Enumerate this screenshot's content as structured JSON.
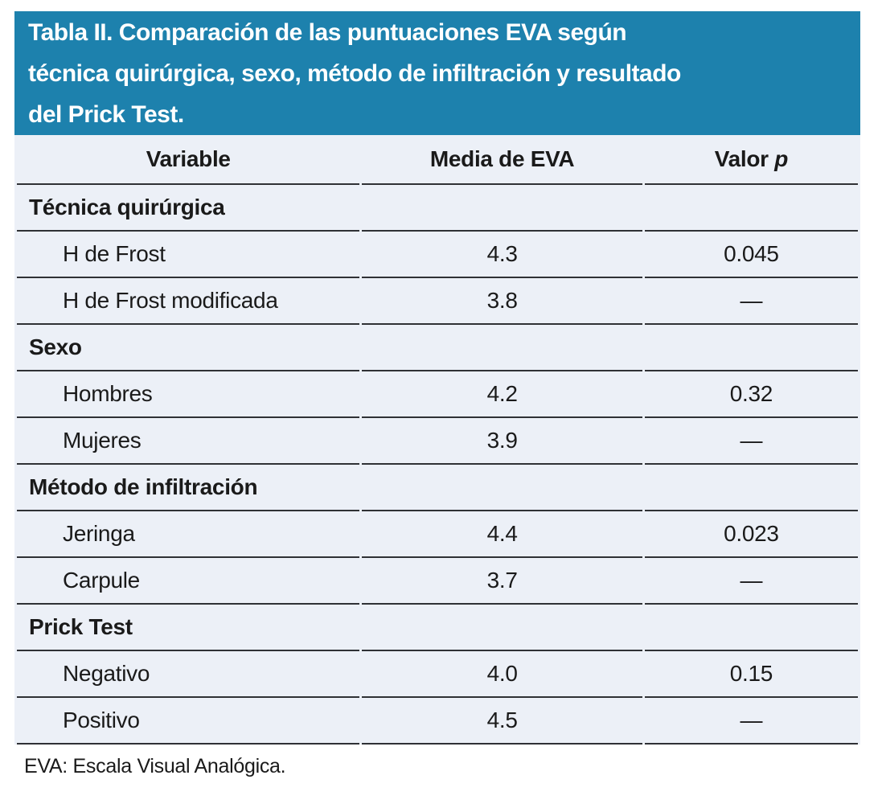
{
  "title": {
    "lines": [
      "Tabla II. Comparación de las puntuaciones EVA según",
      "técnica quirúrgica, sexo, método de infiltración y resultado",
      "del Prick Test."
    ]
  },
  "colors": {
    "banner_bg": "#1d81ad",
    "banner_text": "#ffffff",
    "row_bg": "#ecf0f7",
    "rule": "#2f3135",
    "body_text": "#1a1a1a"
  },
  "table": {
    "columns": [
      {
        "label": "Variable"
      },
      {
        "label": "Media de EVA"
      },
      {
        "label": "Valor",
        "italic": "p"
      }
    ],
    "sections": [
      {
        "title": "Técnica quirúrgica",
        "rows": [
          {
            "label": "H de Frost",
            "eva": "4.3",
            "p": "0.045"
          },
          {
            "label": "H de Frost modificada",
            "eva": "3.8",
            "p": "—"
          }
        ]
      },
      {
        "title": "Sexo",
        "rows": [
          {
            "label": "Hombres",
            "eva": "4.2",
            "p": "0.32"
          },
          {
            "label": "Mujeres",
            "eva": "3.9",
            "p": "—"
          }
        ]
      },
      {
        "title": "Método de infiltración",
        "rows": [
          {
            "label": "Jeringa",
            "eva": "4.4",
            "p": "0.023"
          },
          {
            "label": "Carpule",
            "eva": "3.7",
            "p": "—"
          }
        ]
      },
      {
        "title": "Prick Test",
        "rows": [
          {
            "label": "Negativo",
            "eva": "4.0",
            "p": "0.15"
          },
          {
            "label": "Positivo",
            "eva": "4.5",
            "p": "—"
          }
        ]
      }
    ]
  },
  "footnote": "EVA: Escala Visual Analógica."
}
